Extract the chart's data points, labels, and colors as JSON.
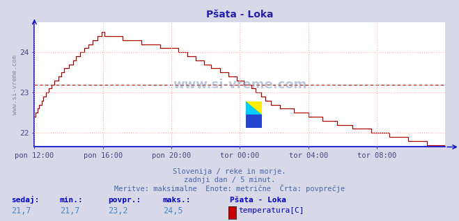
{
  "title": "Pšata - Loka",
  "title_color": "#2222aa",
  "bg_color": "#d8d8e8",
  "plot_bg_color": "#ffffff",
  "line_color": "#aa0000",
  "avg_line_color": "#aa0000",
  "axis_color": "#0000cc",
  "grid_color": "#ffaaaa",
  "tick_label_color": "#444488",
  "ylabel_text": "www.si-vreme.com",
  "ylabel_color": "#8888aa",
  "xticklabels": [
    "pon 12:00",
    "pon 16:00",
    "pon 20:00",
    "tor 00:00",
    "tor 04:00",
    "tor 08:00"
  ],
  "yticks": [
    22,
    23,
    24
  ],
  "ymin": 21.65,
  "ymax": 24.75,
  "avg_value": 23.2,
  "subtitle1": "Slovenija / reke in morje.",
  "subtitle2": "zadnji dan / 5 minut.",
  "subtitle3": "Meritve: maksimalne  Enote: metrične  Črta: povprečje",
  "footer_labels": [
    "sedaj:",
    "min.:",
    "povpr.:",
    "maks.:",
    "Pšata - Loka"
  ],
  "footer_values": [
    "21,7",
    "21,7",
    "23,2",
    "24,5"
  ],
  "legend_label": "temperatura[C]",
  "legend_color": "#cc0000",
  "subtitle_color": "#4466aa",
  "footer_label_color": "#0000cc",
  "footer_value_color": "#4488cc"
}
